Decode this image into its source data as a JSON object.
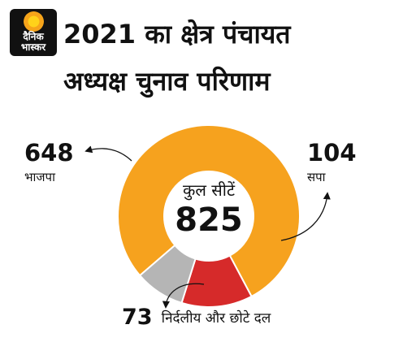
{
  "logo": {
    "line1": "दैनिक",
    "line2": "भास्कर"
  },
  "title": {
    "line1": "2021 का क्षेत्र पंचायत",
    "line2": "अध्यक्ष चुनाव परिणाम"
  },
  "center": {
    "label": "कुल सीटें",
    "total": "825"
  },
  "chart_data": {
    "type": "pie",
    "donut": true,
    "total": 825,
    "slices": [
      {
        "label": "भाजपा",
        "value": 648,
        "color": "#f6a21e"
      },
      {
        "label": "सपा",
        "value": 104,
        "color": "#d62a2a"
      },
      {
        "label": "निर्दलीय और छोटे दल",
        "value": 73,
        "color": "#b5b5b5"
      }
    ]
  },
  "labels": {
    "bjp_value": "648",
    "bjp_name": "भाजपा",
    "sp_value": "104",
    "sp_name": "सपा",
    "ind_value": "73",
    "ind_name": "निर्दलीय और छोटे दल"
  }
}
